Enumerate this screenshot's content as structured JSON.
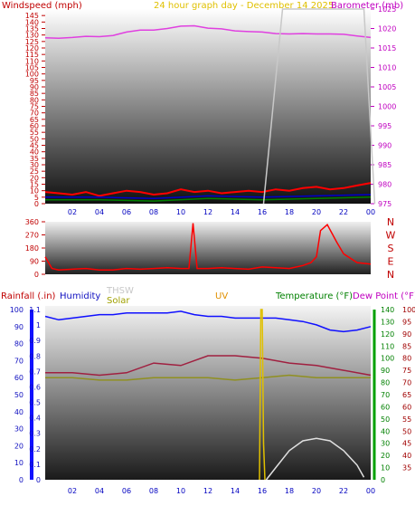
{
  "chart_data": [
    {
      "type": "line",
      "title": "24 hour graph day - December 14 2025",
      "left_axis_label": "Windspeed (mph)",
      "right_axis_label": "Barometer (mb)",
      "x_ticks": [
        "02",
        "04",
        "06",
        "08",
        "10",
        "12",
        "14",
        "16",
        "18",
        "20",
        "22",
        "00"
      ],
      "y_left_ticks": [
        0,
        5,
        10,
        15,
        20,
        25,
        30,
        35,
        40,
        45,
        50,
        55,
        60,
        65,
        70,
        75,
        80,
        85,
        90,
        95,
        100,
        105,
        110,
        115,
        120,
        125,
        130,
        135,
        140,
        145
      ],
      "y_left_lim": [
        0,
        150
      ],
      "y_right_ticks": [
        975,
        980,
        985,
        990,
        995,
        1000,
        1005,
        1010,
        1015,
        1020,
        1025
      ],
      "y_right_lim": [
        975,
        1025
      ],
      "series": [
        {
          "name": "Barometer",
          "color": "#e040e0",
          "axis": "right",
          "x": [
            0,
            1,
            2,
            3,
            4,
            5,
            6,
            7,
            8,
            9,
            10,
            11,
            12,
            13,
            14,
            15,
            16,
            17,
            18,
            19,
            20,
            21,
            22,
            23,
            24
          ],
          "values": [
            1017.6,
            1017.5,
            1017.7,
            1018.0,
            1017.9,
            1018.2,
            1019.1,
            1019.6,
            1019.6,
            1020.0,
            1020.6,
            1020.7,
            1020.1,
            1019.9,
            1019.4,
            1019.2,
            1019.1,
            1018.7,
            1018.6,
            1018.7,
            1018.6,
            1018.6,
            1018.5,
            1018.1,
            1017.7
          ]
        },
        {
          "name": "Wind",
          "color": "#ff0000",
          "axis": "left",
          "x": [
            0,
            1,
            2,
            3,
            4,
            5,
            6,
            7,
            8,
            9,
            10,
            11,
            12,
            13,
            14,
            15,
            16,
            17,
            18,
            19,
            20,
            21,
            22,
            23,
            24
          ],
          "values": [
            9,
            8,
            7,
            9,
            6,
            8,
            10,
            9,
            7,
            8,
            11,
            9,
            10,
            8,
            9,
            10,
            9,
            11,
            10,
            12,
            13,
            11,
            12,
            14,
            16
          ]
        },
        {
          "name": "Gust",
          "color": "#0000cc",
          "axis": "left",
          "x": [
            0,
            4,
            8,
            12,
            16,
            20,
            24
          ],
          "values": [
            5,
            5,
            4,
            6,
            5,
            6,
            7
          ]
        },
        {
          "name": "Avg",
          "color": "#008000",
          "axis": "left",
          "x": [
            0,
            4,
            8,
            12,
            16,
            20,
            24
          ],
          "values": [
            3,
            3,
            2,
            4,
            3,
            4,
            5
          ]
        },
        {
          "name": "Gap",
          "color": "#c8c8c8",
          "axis": "right",
          "x": [
            16.1,
            17.5,
            23.5,
            24.3
          ],
          "values": [
            975,
            1025,
            1025,
            975
          ]
        }
      ]
    },
    {
      "type": "line",
      "title": "Wind direction",
      "x_ticks": [
        "02",
        "04",
        "06",
        "08",
        "10",
        "12",
        "14",
        "16",
        "18",
        "20",
        "22",
        "00"
      ],
      "y_ticks": [
        0,
        90,
        180,
        270,
        360
      ],
      "y_lim": [
        0,
        360
      ],
      "compass_labels": [
        "N",
        "W",
        "S",
        "E",
        "N"
      ],
      "series": [
        {
          "name": "Direction",
          "color": "#ff0000",
          "x": [
            0,
            0.5,
            1,
            2,
            3,
            4,
            5,
            6,
            7,
            8,
            9,
            10,
            10.6,
            10.9,
            11.2,
            12,
            13,
            14,
            15,
            16,
            17,
            18,
            19,
            19.6,
            20,
            20.3,
            20.8,
            21.5,
            22,
            23,
            24
          ],
          "values": [
            120,
            40,
            30,
            35,
            40,
            30,
            30,
            40,
            35,
            40,
            45,
            40,
            40,
            350,
            40,
            40,
            45,
            40,
            35,
            50,
            45,
            40,
            60,
            80,
            120,
            300,
            340,
            220,
            140,
            80,
            70
          ]
        }
      ]
    },
    {
      "type": "line",
      "left_labels": [
        "Rainfall (.in)",
        "Humidity"
      ],
      "legend_labels": [
        "THSW",
        "Solar",
        "UV",
        "Temperature (°F)",
        "Dew Point (°F)"
      ],
      "x_ticks": [
        "02",
        "04",
        "06",
        "08",
        "10",
        "12",
        "14",
        "16",
        "18",
        "20",
        "22",
        "00"
      ],
      "y_humidity_ticks": [
        0,
        10,
        20,
        30,
        40,
        50,
        60,
        70,
        80,
        90,
        100
      ],
      "y_humidity_lim": [
        0,
        100
      ],
      "y_rain_ticks": [
        0,
        0.1,
        0.2,
        0.3,
        0.4,
        0.5,
        0.6,
        0.7,
        0.8,
        0.9,
        1,
        1.1
      ],
      "y_rain_lim": [
        0,
        1.1
      ],
      "y_temp_ticks": [
        35,
        40,
        45,
        50,
        55,
        60,
        65,
        70,
        75,
        80,
        85,
        90,
        95,
        100
      ],
      "y_temp_lim": [
        30,
        100
      ],
      "y_temp_outer_ticks": [
        0,
        10,
        20,
        30,
        40,
        50,
        60,
        70,
        80,
        90,
        100,
        110,
        120,
        130,
        140
      ],
      "y_temp_outer_lim": [
        0,
        140
      ],
      "series": [
        {
          "name": "Humidity",
          "color": "#1010ff",
          "axis": "humidity",
          "x": [
            0,
            1,
            2,
            3,
            4,
            5,
            6,
            7,
            8,
            9,
            10,
            11,
            12,
            13,
            14,
            15,
            16,
            17,
            18,
            19,
            20,
            21,
            22,
            23,
            24
          ],
          "values": [
            96,
            94,
            95,
            96,
            97,
            97,
            98,
            98,
            98,
            98,
            99,
            97,
            96,
            96,
            95,
            95,
            95,
            95,
            94,
            93,
            91,
            88,
            87,
            88,
            90
          ]
        },
        {
          "name": "Temperature (°F)",
          "color": "#a02040",
          "axis": "temp",
          "x": [
            0,
            2,
            4,
            6,
            8,
            10,
            12,
            14,
            16,
            18,
            20,
            22,
            24
          ],
          "values": [
            74,
            74,
            73,
            74,
            78,
            77,
            81,
            81,
            80,
            78,
            77,
            75,
            73
          ]
        },
        {
          "name": "Dew Point (°F)",
          "color": "#909020",
          "axis": "temp",
          "x": [
            0,
            2,
            4,
            6,
            8,
            10,
            12,
            14,
            16,
            18,
            20,
            22,
            24
          ],
          "values": [
            72,
            72,
            71,
            71,
            72,
            72,
            72,
            71,
            72,
            73,
            72,
            72,
            72
          ]
        },
        {
          "name": "Solar",
          "color": "#e0e0e0",
          "axis": "temp",
          "x": [
            16.3,
            17,
            18,
            19,
            20,
            21,
            22,
            23,
            23.5
          ],
          "values": [
            30,
            35,
            42,
            46,
            47,
            46,
            42,
            36,
            31
          ]
        },
        {
          "name": "UV",
          "color": "#e0c000",
          "axis": "temp",
          "x": [
            15.8,
            15.9,
            16.0,
            16.1,
            16.2
          ],
          "values": [
            30,
            100,
            100,
            45,
            30
          ]
        }
      ]
    }
  ]
}
